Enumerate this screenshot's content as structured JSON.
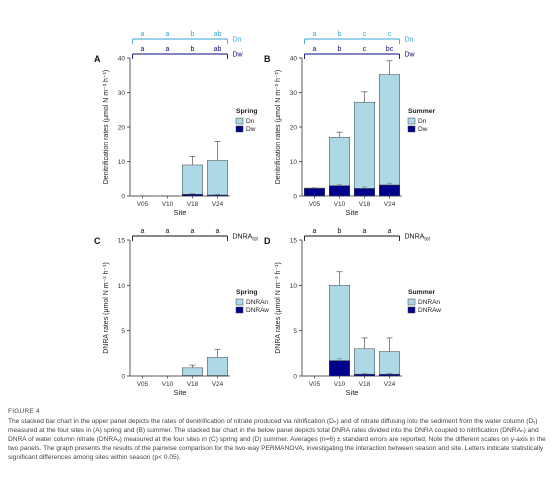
{
  "colors": {
    "dn": "#add8e6",
    "dw": "#00008b",
    "dn_letters": "#39a3d6",
    "dw_letters": "#0a0a7a"
  },
  "chart_data": [
    {
      "panel": "A",
      "type": "bar",
      "stacked": true,
      "categories": [
        "V05",
        "V10",
        "V18",
        "V24"
      ],
      "series": [
        {
          "name": "Dn",
          "values": [
            0,
            0,
            8.5,
            10.0
          ],
          "error": [
            0,
            0,
            2.5,
            5.5
          ]
        },
        {
          "name": "Dw",
          "values": [
            0,
            0,
            0.5,
            0.3
          ],
          "error": [
            0,
            0,
            0.2,
            0.2
          ]
        }
      ],
      "xlabel": "Site",
      "ylabel": "Denitrification rates (μmol N m⁻² h⁻¹)",
      "ylim": [
        0,
        40
      ],
      "yticks": [
        "0",
        "10",
        "20",
        "30",
        "40"
      ],
      "legend_title": "Spring",
      "legend_position": "right",
      "letters_dn": [
        "a",
        "a",
        "b",
        "ab"
      ],
      "letters_dw": [
        "a",
        "a",
        "b",
        "ab"
      ],
      "bracket_dn_label": "Dn",
      "bracket_dw_label": "Dw"
    },
    {
      "panel": "B",
      "type": "bar",
      "stacked": true,
      "categories": [
        "V05",
        "V10",
        "V18",
        "V24"
      ],
      "series": [
        {
          "name": "Dn",
          "values": [
            0.1,
            14.0,
            25.0,
            32.0
          ],
          "error": [
            0,
            1.5,
            3.0,
            4.0
          ]
        },
        {
          "name": "Dw",
          "values": [
            2.2,
            3.0,
            2.2,
            3.2
          ],
          "error": [
            0.2,
            0.3,
            0.4,
            0.5
          ]
        }
      ],
      "xlabel": "Site",
      "ylabel": "Denitrification rates (μmol N m⁻² h⁻¹)",
      "ylim": [
        0,
        40
      ],
      "yticks": [
        "0",
        "10",
        "20",
        "30",
        "40"
      ],
      "legend_title": "Summer",
      "legend_position": "right",
      "letters_dn": [
        "a",
        "b",
        "c",
        "c"
      ],
      "letters_dw": [
        "a",
        "b",
        "c",
        "bc"
      ],
      "bracket_dn_label": "Dn",
      "bracket_dw_label": "Dw"
    },
    {
      "panel": "C",
      "type": "bar",
      "stacked": true,
      "categories": [
        "V05",
        "V10",
        "V18",
        "V24"
      ],
      "series": [
        {
          "name": "DNRAn",
          "values": [
            0,
            0,
            0.85,
            2.0
          ],
          "error": [
            0,
            0,
            0.3,
            0.9
          ]
        },
        {
          "name": "DNRAw",
          "values": [
            0,
            0,
            0.05,
            0.05
          ],
          "error": [
            0,
            0,
            0.02,
            0.02
          ]
        }
      ],
      "xlabel": "Site",
      "ylabel": "DNRA rates (μmol N m⁻² h⁻¹)",
      "ylim": [
        0,
        15
      ],
      "yticks": [
        "0",
        "5",
        "10",
        "15"
      ],
      "legend_title": "Spring",
      "legend_position": "right",
      "letters_tot": [
        "a",
        "a",
        "a",
        "a"
      ],
      "bracket_label": "DNRAtot"
    },
    {
      "panel": "D",
      "type": "bar",
      "stacked": true,
      "categories": [
        "V05",
        "V10",
        "V18",
        "V24"
      ],
      "series": [
        {
          "name": "DNRAn",
          "values": [
            0,
            8.3,
            2.8,
            2.5
          ],
          "error": [
            0,
            1.5,
            1.2,
            1.5
          ]
        },
        {
          "name": "DNRAw",
          "values": [
            0,
            1.7,
            0.2,
            0.2
          ],
          "error": [
            0,
            0.2,
            0.1,
            0.1
          ]
        }
      ],
      "xlabel": "Site",
      "ylabel": "DNRA rates (μmol N m⁻² h⁻¹)",
      "ylim": [
        0,
        15
      ],
      "yticks": [
        "0",
        "5",
        "10",
        "15"
      ],
      "legend_title": "Summer",
      "legend_position": "right",
      "letters_tot": [
        "a",
        "b",
        "a",
        "a"
      ],
      "bracket_label": "DNRAtot"
    }
  ],
  "caption": {
    "label": "FIGURE 4",
    "text": "The stacked bar chart in the upper panel depicts the rates of denitrification of nitrate produced via nitrification (Dₙ) and of nitrate diffusing into the sediment from the water column (Dᵥ) measured at the four sites in (A) spring and (B) summer. The stacked bar chart in the below panel depicts total DNRA rates divided into the DNRA coupled to nitrification (DNRAₙ) and DNRA of water column nitrate (DNRAᵥ) measured at the four sites in (C) spring and (D) summer. Averages (n=6) ± standard errors are reported. Note the different scales on y-axis in the two panels. The graph presents the results of the pairwise comparison for the two-way PERMANOVA, investigating the interaction between season and site. Letters indicate statistically significant differences among sites within season (p< 0.05)."
  }
}
